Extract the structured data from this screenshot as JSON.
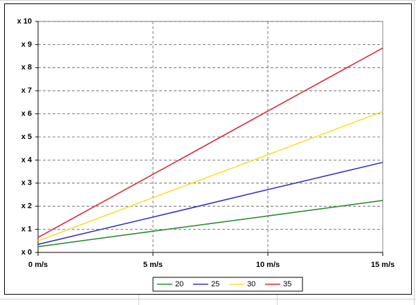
{
  "chart_data": {
    "type": "line",
    "x": [
      0,
      5,
      10,
      15
    ],
    "xlim": [
      0,
      15
    ],
    "xticks": [
      {
        "value": 0,
        "label": "0 m/s"
      },
      {
        "value": 5,
        "label": "5 m/s"
      },
      {
        "value": 10,
        "label": "10 m/s"
      },
      {
        "value": 15,
        "label": "15 m/s"
      }
    ],
    "ylim": [
      0,
      10
    ],
    "yticks": [
      {
        "value": 0,
        "label": "x 0"
      },
      {
        "value": 1,
        "label": "x 1"
      },
      {
        "value": 2,
        "label": "x 2"
      },
      {
        "value": 3,
        "label": "x 3"
      },
      {
        "value": 4,
        "label": "x 4"
      },
      {
        "value": 5,
        "label": "x 5"
      },
      {
        "value": 6,
        "label": "x 6"
      },
      {
        "value": 7,
        "label": "x 7"
      },
      {
        "value": 8,
        "label": "x 8"
      },
      {
        "value": 9,
        "label": "x 9"
      },
      {
        "value": 10,
        "label": "x 10"
      }
    ],
    "grid": true,
    "legend": "bottom",
    "series": [
      {
        "name": "20",
        "color": "#2e8b2e",
        "values": [
          0.25,
          0.92,
          1.58,
          2.25
        ]
      },
      {
        "name": "25",
        "color": "#3333bb",
        "values": [
          0.35,
          1.53,
          2.72,
          3.9
        ]
      },
      {
        "name": "30",
        "color": "#f2e030",
        "values": [
          0.5,
          2.37,
          4.23,
          6.1
        ]
      },
      {
        "name": "35",
        "color": "#d42a3a",
        "values": [
          0.65,
          3.38,
          6.12,
          8.85
        ]
      }
    ]
  }
}
